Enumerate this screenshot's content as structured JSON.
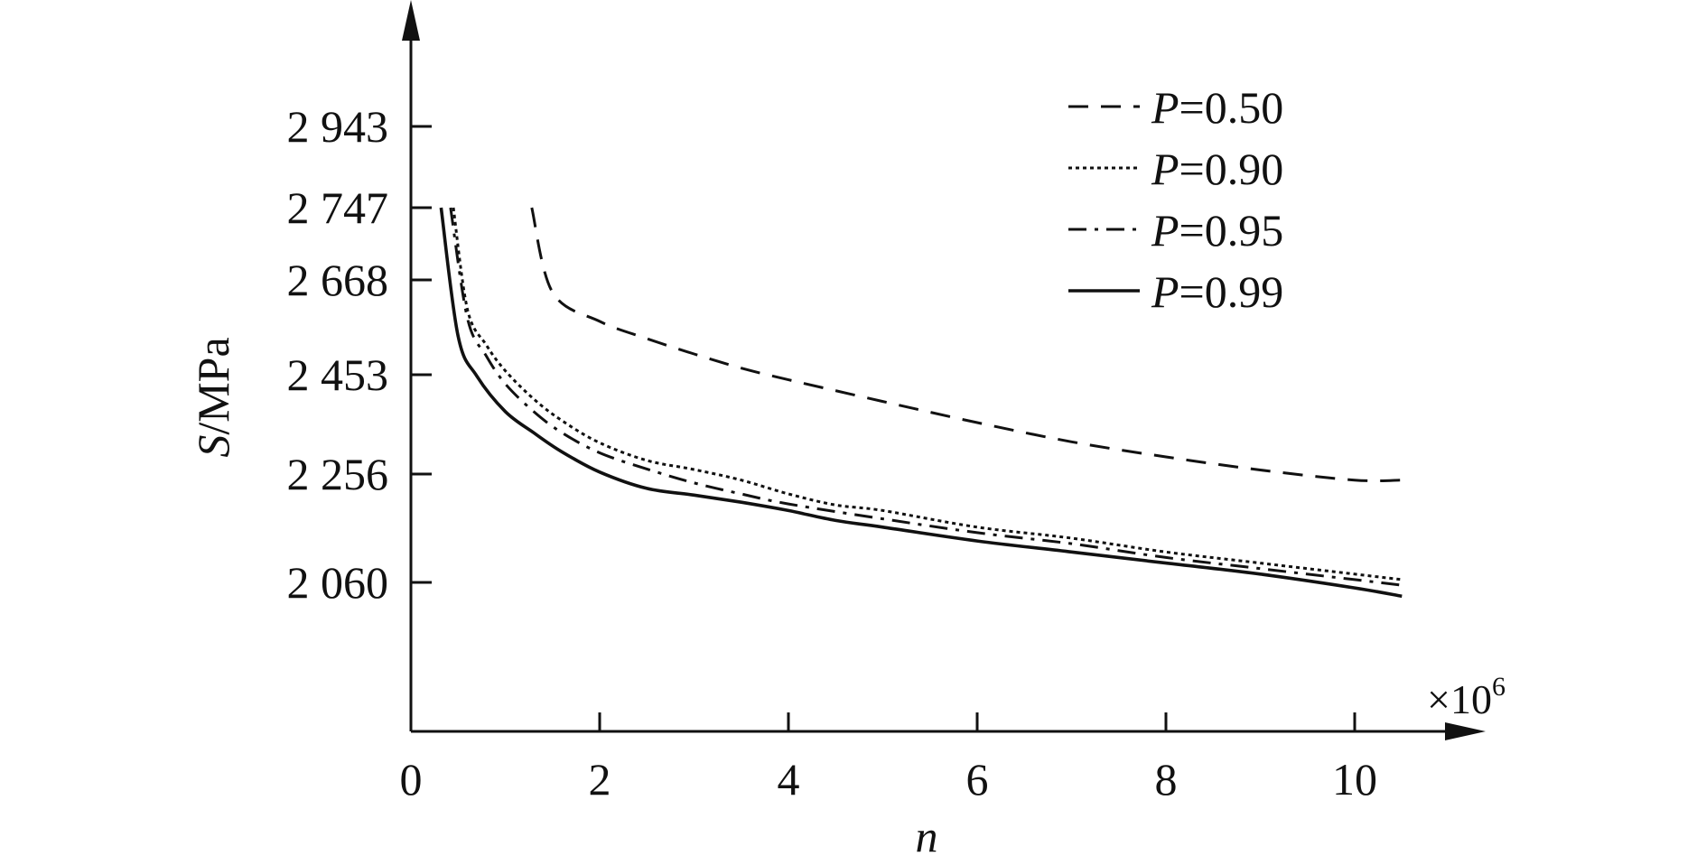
{
  "chart_data": {
    "type": "line",
    "title": "",
    "xlabel": "n",
    "ylabel_var": "S",
    "ylabel_unit": "/MPa",
    "x_multiplier_prefix": "×10",
    "x_multiplier_exp": "6",
    "xlim": [
      0,
      11
    ],
    "x_ticks": [
      0,
      2,
      4,
      6,
      8,
      10
    ],
    "x_tick_labels": [
      "0",
      "2",
      "4",
      "6",
      "8",
      "10"
    ],
    "y_ticks": [
      2060,
      2256,
      2453,
      2668,
      2747,
      2943
    ],
    "y_tick_labels": [
      "2 060",
      "2 256",
      "2 453",
      "2 668",
      "2 747",
      "2 943"
    ],
    "grid": false,
    "legend_position": "top-right",
    "series": [
      {
        "name_var": "P",
        "name_value": "=0.50",
        "style": "dashed",
        "x": [
          1.28,
          1.5,
          2.0,
          2.5,
          3.0,
          3.5,
          4.0,
          5.0,
          6.0,
          7.0,
          8.0,
          9.0,
          10.0,
          10.5
        ],
        "y": [
          2747,
          2640,
          2574,
          2535,
          2500,
          2468,
          2443,
          2400,
          2358,
          2320,
          2290,
          2264,
          2245,
          2245
        ]
      },
      {
        "name_var": "P",
        "name_value": "=0.90",
        "style": "dotted",
        "x": [
          0.45,
          0.6,
          0.8,
          1.0,
          1.3,
          1.6,
          2.0,
          2.5,
          3.0,
          3.5,
          4.0,
          4.5,
          5.0,
          6.0,
          7.0,
          8.0,
          9.0,
          10.0,
          10.5
        ],
        "y": [
          2747,
          2600,
          2520,
          2462,
          2405,
          2362,
          2318,
          2283,
          2265,
          2245,
          2220,
          2200,
          2190,
          2160,
          2140,
          2115,
          2095,
          2075,
          2065
        ]
      },
      {
        "name_var": "P",
        "name_value": "=0.95",
        "style": "dash-dot",
        "x": [
          0.42,
          0.6,
          0.8,
          1.0,
          1.3,
          1.6,
          2.0,
          2.5,
          3.0,
          3.5,
          4.0,
          5.0,
          6.0,
          7.0,
          8.0,
          9.0,
          10.0,
          10.5
        ],
        "y": [
          2747,
          2580,
          2495,
          2435,
          2380,
          2338,
          2298,
          2266,
          2240,
          2220,
          2202,
          2175,
          2150,
          2130,
          2105,
          2085,
          2065,
          2055
        ]
      },
      {
        "name_var": "P",
        "name_value": "=0.99",
        "style": "solid",
        "x": [
          0.32,
          0.5,
          0.7,
          1.0,
          1.3,
          1.6,
          2.0,
          2.5,
          3.0,
          3.5,
          4.0,
          4.5,
          5.0,
          6.0,
          7.0,
          8.0,
          9.0,
          10.0,
          10.5
        ],
        "y": [
          2747,
          2540,
          2450,
          2380,
          2338,
          2300,
          2260,
          2230,
          2218,
          2205,
          2190,
          2172,
          2160,
          2135,
          2115,
          2095,
          2075,
          2050,
          2035
        ]
      }
    ]
  }
}
